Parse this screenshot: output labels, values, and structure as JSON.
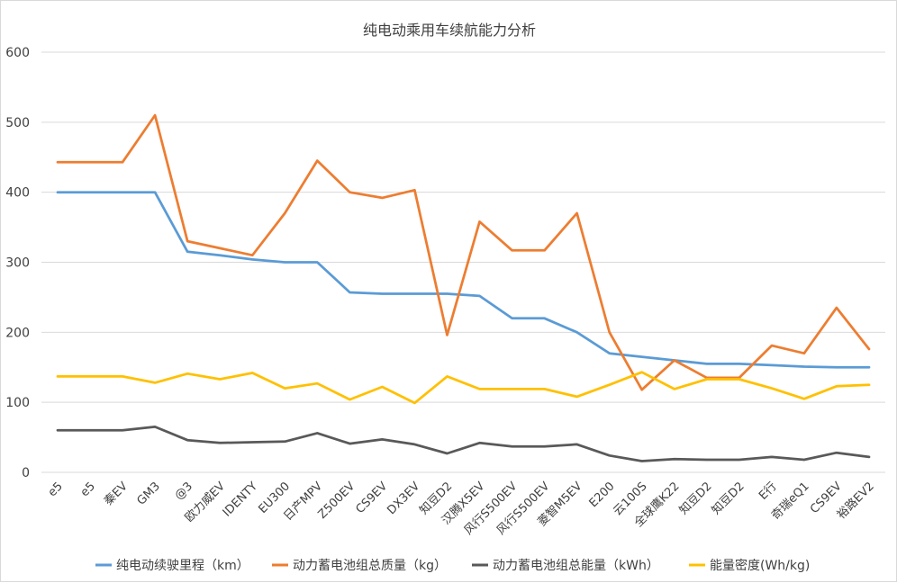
{
  "chart_data": {
    "type": "line",
    "title": "纯电动乘用车续航能力分析",
    "categories": [
      "e5",
      "e5",
      "秦EV",
      "GM3",
      "@3",
      "欧力威EV",
      "IDENTY",
      "EU300",
      "日产MPV",
      "Z500EV",
      "CS9EV",
      "DX3EV",
      "知豆D2",
      "汉腾X5EV",
      "风行S500EV",
      "风行S500EV",
      "菱智M5EV",
      "E200",
      "云100S",
      "全球鹰K22",
      "知豆D2",
      "知豆D2",
      "E行",
      "奇瑞eQ1",
      "CS9EV",
      "裕路EV2"
    ],
    "ylim": [
      0,
      600
    ],
    "yticks": [
      0,
      100,
      200,
      300,
      400,
      500,
      600
    ],
    "grid": true,
    "legend_position": "bottom",
    "series": [
      {
        "name": "纯电动续驶里程（km）",
        "color": "#5b9bd5",
        "values": [
          400,
          400,
          400,
          400,
          315,
          310,
          304,
          300,
          300,
          257,
          255,
          255,
          255,
          252,
          220,
          220,
          200,
          170,
          165,
          160,
          155,
          155,
          153,
          151,
          150,
          150
        ]
      },
      {
        "name": "动力蓄电池组总质量（kg）",
        "color": "#ed7d31",
        "values": [
          443,
          443,
          443,
          510,
          330,
          320,
          310,
          370,
          445,
          400,
          392,
          403,
          196,
          358,
          317,
          317,
          370,
          200,
          118,
          160,
          135,
          135,
          181,
          170,
          235,
          176
        ]
      },
      {
        "name": "动力蓄电池组总能量（kWh）",
        "color": "#595959",
        "values": [
          60,
          60,
          60,
          65,
          46,
          42,
          43,
          44,
          56,
          41,
          47,
          40,
          27,
          42,
          37,
          37,
          40,
          24,
          16,
          19,
          18,
          18,
          22,
          18,
          28,
          22
        ]
      },
      {
        "name": "能量密度(Wh/kg)",
        "color": "#ffc000",
        "values": [
          137,
          137,
          137,
          128,
          141,
          133,
          142,
          120,
          127,
          104,
          122,
          99,
          137,
          119,
          119,
          119,
          108,
          125,
          143,
          119,
          133,
          133,
          120,
          105,
          123,
          125
        ]
      }
    ]
  }
}
